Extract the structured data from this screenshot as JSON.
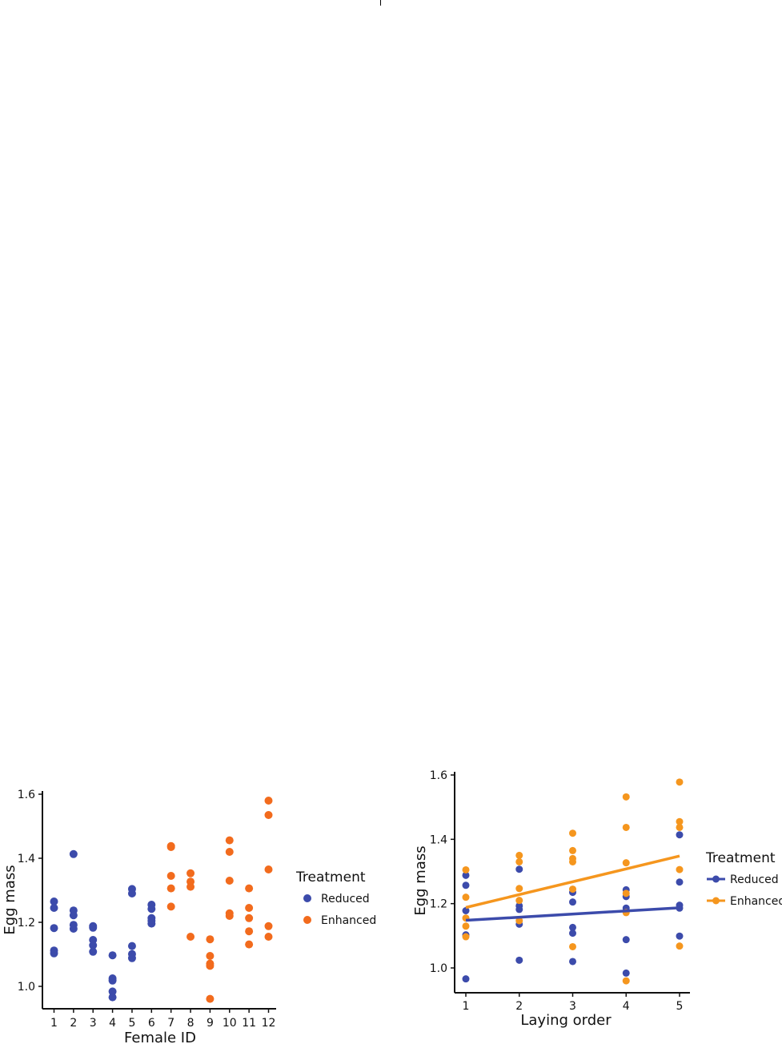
{
  "colors": {
    "reduced": "#3c4bab",
    "enhanced_left": "#f26b1d",
    "enhanced_right": "#f5961e",
    "axis": "#111111"
  },
  "chart_data": [
    {
      "type": "scatter",
      "xlabel": "Female ID",
      "ylabel": "Egg mass",
      "categories": [
        "1",
        "2",
        "3",
        "4",
        "5",
        "6",
        "7",
        "8",
        "9",
        "10",
        "11",
        "12"
      ],
      "yticks": [
        "1.0",
        "1.2",
        "1.4",
        "1.6"
      ],
      "ylim": [
        0.93,
        1.62
      ],
      "legend": {
        "title": "Treatment",
        "position": "right",
        "entries": [
          "Reduced",
          "Enhanced"
        ]
      },
      "series": [
        {
          "name": "Reduced",
          "points": [
            [
              1,
              1.265
            ],
            [
              1,
              1.245
            ],
            [
              1,
              1.182
            ],
            [
              1,
              1.112
            ],
            [
              1,
              1.103
            ],
            [
              2,
              1.413
            ],
            [
              2,
              1.237
            ],
            [
              2,
              1.222
            ],
            [
              2,
              1.192
            ],
            [
              2,
              1.18
            ],
            [
              3,
              1.188
            ],
            [
              3,
              1.183
            ],
            [
              3,
              1.145
            ],
            [
              3,
              1.128
            ],
            [
              3,
              1.108
            ],
            [
              4,
              1.097
            ],
            [
              4,
              1.025
            ],
            [
              4,
              1.018
            ],
            [
              4,
              0.984
            ],
            [
              4,
              0.966
            ],
            [
              5,
              1.304
            ],
            [
              5,
              1.29
            ],
            [
              5,
              1.126
            ],
            [
              5,
              1.101
            ],
            [
              5,
              1.088
            ],
            [
              6,
              1.255
            ],
            [
              6,
              1.242
            ],
            [
              6,
              1.213
            ],
            [
              6,
              1.205
            ],
            [
              6,
              1.196
            ]
          ]
        },
        {
          "name": "Enhanced",
          "points": [
            [
              7,
              1.438
            ],
            [
              7,
              1.435
            ],
            [
              7,
              1.345
            ],
            [
              7,
              1.306
            ],
            [
              7,
              1.249
            ],
            [
              8,
              1.353
            ],
            [
              8,
              1.327
            ],
            [
              8,
              1.311
            ],
            [
              8,
              1.155
            ],
            [
              9,
              1.147
            ],
            [
              9,
              1.095
            ],
            [
              9,
              1.071
            ],
            [
              9,
              1.064
            ],
            [
              9,
              0.961
            ],
            [
              10,
              1.456
            ],
            [
              10,
              1.42
            ],
            [
              10,
              1.33
            ],
            [
              10,
              1.228
            ],
            [
              10,
              1.22
            ],
            [
              11,
              1.306
            ],
            [
              11,
              1.245
            ],
            [
              11,
              1.213
            ],
            [
              11,
              1.172
            ],
            [
              11,
              1.131
            ],
            [
              12,
              1.58
            ],
            [
              12,
              1.535
            ],
            [
              12,
              1.365
            ],
            [
              12,
              1.188
            ],
            [
              12,
              1.155
            ]
          ]
        }
      ]
    },
    {
      "type": "scatter",
      "xlabel": "Laying order",
      "ylabel": "Egg mass",
      "xticks": [
        "1",
        "2",
        "3",
        "4",
        "5"
      ],
      "yticks": [
        "1.0",
        "1.2",
        "1.4",
        "1.6"
      ],
      "xlim": [
        0.9,
        5.2
      ],
      "ylim": [
        0.94,
        1.61
      ],
      "legend": {
        "title": "Treatment",
        "position": "right",
        "entries": [
          "Reduced",
          "Enhanced"
        ]
      },
      "series": [
        {
          "name": "Reduced",
          "fit": {
            "x": [
              1,
              5
            ],
            "y": [
              1.148,
              1.187
            ]
          },
          "points": [
            [
              1,
              1.288
            ],
            [
              1,
              1.257
            ],
            [
              1,
              1.178
            ],
            [
              1,
              1.103
            ],
            [
              1,
              0.966
            ],
            [
              2,
              1.307
            ],
            [
              2,
              1.193
            ],
            [
              2,
              1.182
            ],
            [
              2,
              1.136
            ],
            [
              2,
              1.024
            ],
            [
              3,
              1.235
            ],
            [
              3,
              1.205
            ],
            [
              3,
              1.126
            ],
            [
              3,
              1.108
            ],
            [
              3,
              1.02
            ],
            [
              4,
              1.243
            ],
            [
              4,
              1.222
            ],
            [
              4,
              1.186
            ],
            [
              4,
              1.088
            ],
            [
              4,
              0.984
            ],
            [
              5,
              1.414
            ],
            [
              5,
              1.267
            ],
            [
              5,
              1.195
            ],
            [
              5,
              1.186
            ],
            [
              5,
              1.099
            ]
          ]
        },
        {
          "name": "Enhanced",
          "fit": {
            "x": [
              1,
              5
            ],
            "y": [
              1.188,
              1.348
            ]
          },
          "points": [
            [
              1,
              1.305
            ],
            [
              1,
              1.22
            ],
            [
              1,
              1.155
            ],
            [
              1,
              1.13
            ],
            [
              1,
              1.097
            ],
            [
              2,
              1.35
            ],
            [
              2,
              1.33
            ],
            [
              2,
              1.247
            ],
            [
              2,
              1.21
            ],
            [
              2,
              1.147
            ],
            [
              3,
              1.419
            ],
            [
              3,
              1.365
            ],
            [
              3,
              1.34
            ],
            [
              3,
              1.33
            ],
            [
              3,
              1.245
            ],
            [
              3,
              1.066
            ],
            [
              4,
              1.532
            ],
            [
              4,
              1.437
            ],
            [
              4,
              1.327
            ],
            [
              4,
              1.232
            ],
            [
              4,
              1.172
            ],
            [
              4,
              0.96
            ],
            [
              5,
              1.578
            ],
            [
              5,
              1.455
            ],
            [
              5,
              1.437
            ],
            [
              5,
              1.306
            ],
            [
              5,
              1.068
            ]
          ]
        }
      ]
    }
  ]
}
